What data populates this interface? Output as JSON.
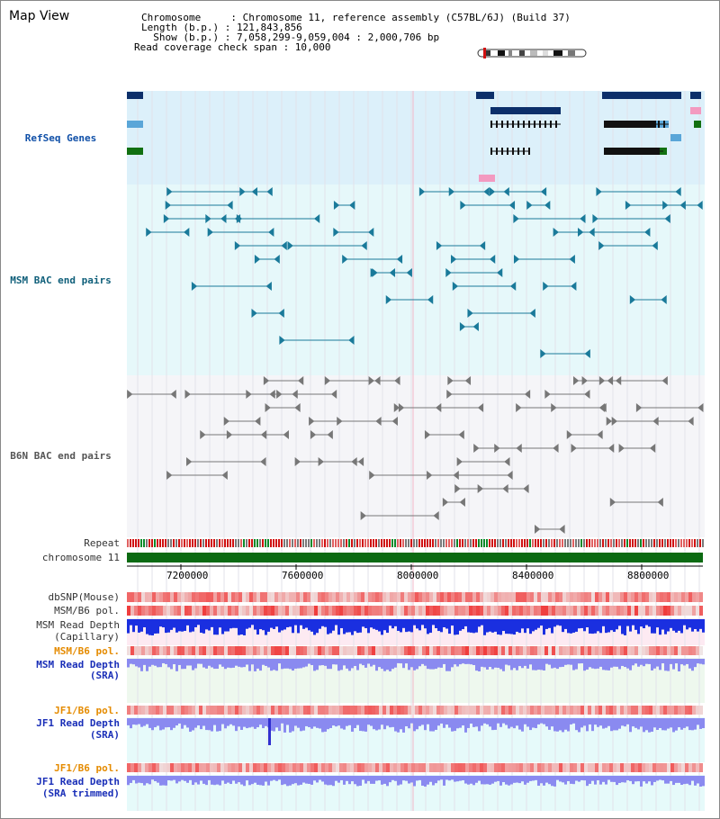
{
  "view_title": "Map View",
  "info": {
    "chromosome": "Chromosome     : Chromosome 11, reference assembly (C57BL/6J) (Build 37)",
    "length": "Length (b.p.) : 121,843,856",
    "show": "  Show (b.p.) : 7,058,299-9,059,004 : 2,000,706 bp",
    "coverage": "Read coverage check span : 10,000"
  },
  "tracks": {
    "refseq": "RefSeq Genes",
    "msm_bac": "MSM BAC end pairs",
    "b6n_bac": "B6N BAC end pairs",
    "repeat": "Repeat",
    "chromosome": "chromosome 11",
    "dbsnp": "dbSNP(Mouse)",
    "msm_pol1": "MSM/B6 pol.",
    "msm_depth_cap_1": "MSM Read Depth",
    "msm_depth_cap_2": "(Capillary)",
    "msm_pol2": "MSM/B6 pol.",
    "msm_depth_sra_1": "MSM Read Depth",
    "msm_depth_sra_2": "(SRA)",
    "jf1_pol1": "JF1/B6 pol.",
    "jf1_depth_1": "JF1 Read Depth",
    "jf1_depth_2": "(SRA)",
    "jf1_pol2": "JF1/B6 pol.",
    "jf1_trim_1": "JF1 Read Depth",
    "jf1_trim_2": "(SRA trimmed)"
  },
  "axis_ticks": [
    "7200000",
    "7600000",
    "8000000",
    "8400000",
    "8800000"
  ],
  "colors": {
    "refseq_bg": "#dcf0fa",
    "msm_bg": "#e6f8fa",
    "b6n_bg": "#f5f5f8",
    "pink_bg": "#fdeaf2",
    "green_bg": "#eef8ee",
    "cyan_bg": "#e6fafa",
    "gene_dark": "#0c2f6a",
    "gene_black": "#111111",
    "gene_green": "#117011",
    "gene_light": "#5aa6d8",
    "bac_teal": "#1a7a9a",
    "bac_gray": "#777777",
    "chromosome_bar": "#0b6a12",
    "depth_capillary": "#1a2fe0",
    "depth_sra": "#8a8af0"
  }
}
